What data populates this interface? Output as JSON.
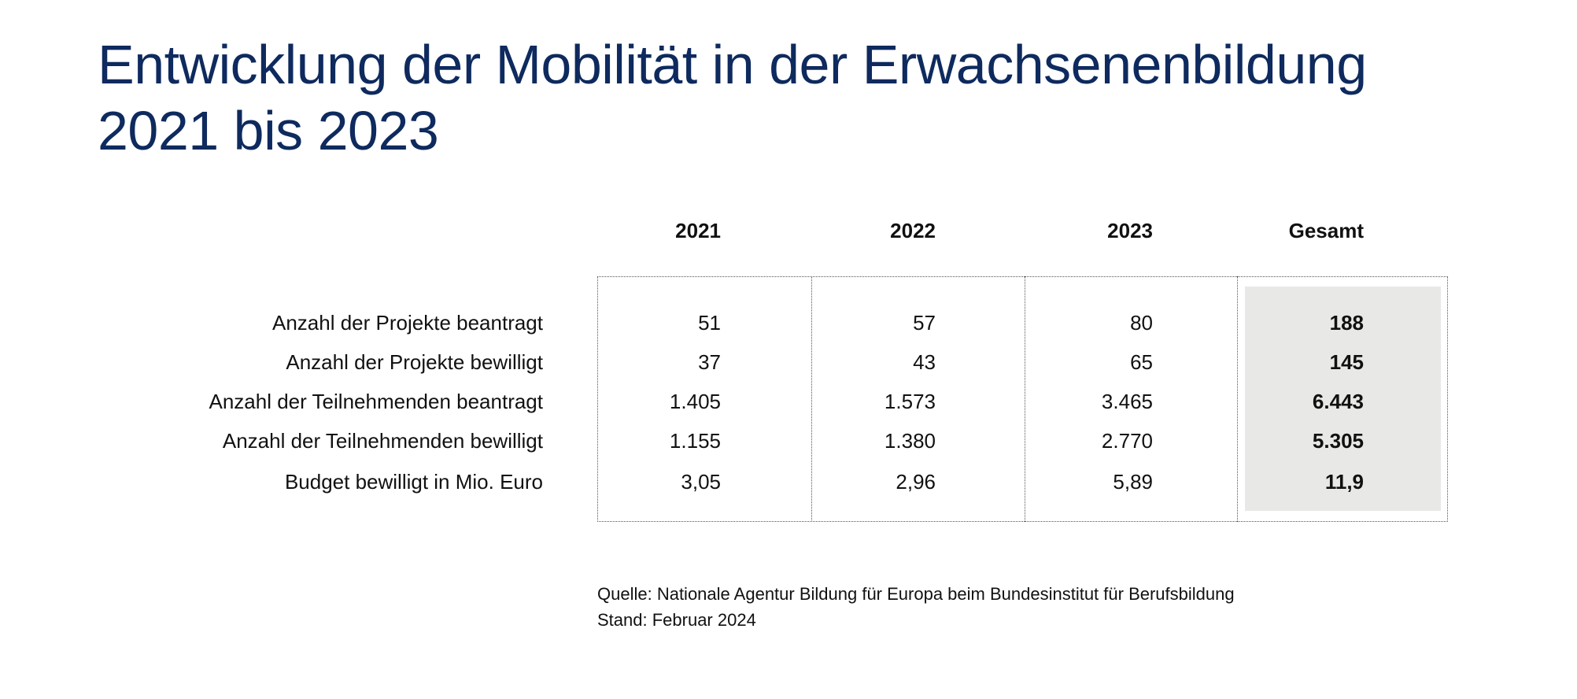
{
  "title": {
    "line1": "Entwicklung der Mobilität in der Erwachsenenbildung",
    "line2": "2021 bis 2023"
  },
  "colors": {
    "title": "#0e2a5e",
    "total_column_bg": "#e8e8e6"
  },
  "table": {
    "columns": [
      "2021",
      "2022",
      "2023",
      "Gesamt"
    ],
    "rows": [
      {
        "label": "Anzahl der Projekte beantragt",
        "values": [
          "51",
          "57",
          "80",
          "188"
        ]
      },
      {
        "label": "Anzahl der Projekte bewilligt",
        "values": [
          "37",
          "43",
          "65",
          "145"
        ]
      },
      {
        "label": "Anzahl der Teilnehmenden beantragt",
        "values": [
          "1.405",
          "1.573",
          "3.465",
          "6.443"
        ]
      },
      {
        "label": "Anzahl der Teilnehmenden bewilligt",
        "values": [
          "1.155",
          "1.380",
          "2.770",
          "5.305"
        ]
      },
      {
        "label": "Budget bewilligt in Mio. Euro",
        "values": [
          "3,05",
          "2,96",
          "5,89",
          "11,9"
        ]
      }
    ]
  },
  "footer": {
    "source": "Quelle: Nationale Agentur Bildung für Europa beim Bundesinstitut für Berufsbildung",
    "date": "Stand: Februar 2024"
  }
}
